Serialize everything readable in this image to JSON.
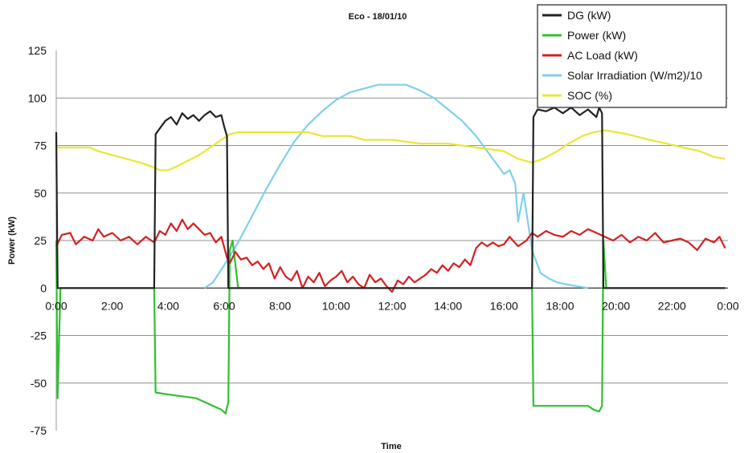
{
  "chart_data": {
    "type": "line",
    "title": "Eco - 18/01/10",
    "xlabel": "Time",
    "ylabel": "Power (kW)",
    "ylim": [
      -75,
      125
    ],
    "yticks": [
      125,
      100,
      75,
      50,
      25,
      0,
      -25,
      -50,
      -75
    ],
    "xlim_hours": [
      0,
      24
    ],
    "xticks": [
      "0:00",
      "2:00",
      "4:00",
      "6:00",
      "8:00",
      "10:00",
      "12:00",
      "14:00",
      "16:00",
      "18:00",
      "20:00",
      "22:00",
      "0:00"
    ],
    "grid": "horizontal",
    "legend_position": "top-right",
    "series": [
      {
        "name": "DG (kW)",
        "color": "#222222",
        "points": [
          [
            0,
            82
          ],
          [
            0.05,
            0
          ],
          [
            3.5,
            0
          ],
          [
            3.55,
            81
          ],
          [
            3.7,
            84
          ],
          [
            3.9,
            88
          ],
          [
            4.1,
            90
          ],
          [
            4.3,
            86
          ],
          [
            4.5,
            92
          ],
          [
            4.7,
            89
          ],
          [
            4.9,
            91
          ],
          [
            5.1,
            88
          ],
          [
            5.3,
            91
          ],
          [
            5.5,
            93
          ],
          [
            5.7,
            90
          ],
          [
            5.9,
            91
          ],
          [
            6.0,
            85
          ],
          [
            6.1,
            80
          ],
          [
            6.15,
            0
          ],
          [
            17.0,
            0
          ],
          [
            17.05,
            90
          ],
          [
            17.2,
            94
          ],
          [
            17.5,
            93
          ],
          [
            17.8,
            95
          ],
          [
            18.1,
            92
          ],
          [
            18.4,
            95
          ],
          [
            18.7,
            91
          ],
          [
            19.0,
            94
          ],
          [
            19.3,
            90
          ],
          [
            19.4,
            95
          ],
          [
            19.5,
            92
          ],
          [
            19.55,
            0
          ],
          [
            23.9,
            0
          ]
        ]
      },
      {
        "name": "Power (kW)",
        "color": "#2fc02f",
        "points": [
          [
            0,
            25
          ],
          [
            0.05,
            -58
          ],
          [
            0.15,
            0
          ],
          [
            3.5,
            0
          ],
          [
            3.55,
            -55
          ],
          [
            4.0,
            -56
          ],
          [
            4.5,
            -57
          ],
          [
            5.0,
            -58
          ],
          [
            5.3,
            -60
          ],
          [
            5.6,
            -62
          ],
          [
            5.9,
            -64
          ],
          [
            6.05,
            -66
          ],
          [
            6.15,
            -60
          ],
          [
            6.2,
            20
          ],
          [
            6.3,
            25
          ],
          [
            6.5,
            0
          ],
          [
            17.0,
            0
          ],
          [
            17.05,
            -62
          ],
          [
            17.5,
            -62
          ],
          [
            18.0,
            -62
          ],
          [
            18.5,
            -62
          ],
          [
            19.0,
            -62
          ],
          [
            19.2,
            -64
          ],
          [
            19.4,
            -65
          ],
          [
            19.5,
            -62
          ],
          [
            19.55,
            25
          ],
          [
            19.65,
            0
          ],
          [
            23.9,
            0
          ]
        ]
      },
      {
        "name": "AC Load (kW)",
        "color": "#d42020",
        "points": [
          [
            0,
            22
          ],
          [
            0.2,
            28
          ],
          [
            0.5,
            29
          ],
          [
            0.7,
            23
          ],
          [
            1.0,
            27
          ],
          [
            1.3,
            25
          ],
          [
            1.5,
            31
          ],
          [
            1.7,
            27
          ],
          [
            2.0,
            29
          ],
          [
            2.3,
            25
          ],
          [
            2.6,
            27
          ],
          [
            2.9,
            23
          ],
          [
            3.2,
            27
          ],
          [
            3.5,
            24
          ],
          [
            3.7,
            30
          ],
          [
            3.9,
            28
          ],
          [
            4.1,
            34
          ],
          [
            4.3,
            30
          ],
          [
            4.5,
            36
          ],
          [
            4.7,
            31
          ],
          [
            4.9,
            34
          ],
          [
            5.1,
            31
          ],
          [
            5.3,
            28
          ],
          [
            5.5,
            29
          ],
          [
            5.7,
            24
          ],
          [
            5.9,
            27
          ],
          [
            6.1,
            16
          ],
          [
            6.2,
            13
          ],
          [
            6.4,
            19
          ],
          [
            6.6,
            15
          ],
          [
            6.8,
            16
          ],
          [
            7.0,
            12
          ],
          [
            7.2,
            14
          ],
          [
            7.4,
            10
          ],
          [
            7.6,
            13
          ],
          [
            7.8,
            5
          ],
          [
            8.0,
            11
          ],
          [
            8.2,
            6
          ],
          [
            8.4,
            4
          ],
          [
            8.6,
            9
          ],
          [
            8.8,
            0
          ],
          [
            9.0,
            6
          ],
          [
            9.2,
            3
          ],
          [
            9.4,
            8
          ],
          [
            9.6,
            1
          ],
          [
            9.8,
            4
          ],
          [
            10.0,
            6
          ],
          [
            10.2,
            9
          ],
          [
            10.4,
            3
          ],
          [
            10.6,
            6
          ],
          [
            10.8,
            2
          ],
          [
            11.0,
            0
          ],
          [
            11.2,
            7
          ],
          [
            11.4,
            3
          ],
          [
            11.6,
            5
          ],
          [
            11.8,
            1
          ],
          [
            12.0,
            -2
          ],
          [
            12.2,
            4
          ],
          [
            12.4,
            2
          ],
          [
            12.6,
            6
          ],
          [
            12.8,
            3
          ],
          [
            13.0,
            5
          ],
          [
            13.2,
            7
          ],
          [
            13.4,
            10
          ],
          [
            13.6,
            8
          ],
          [
            13.8,
            12
          ],
          [
            14.0,
            9
          ],
          [
            14.2,
            13
          ],
          [
            14.4,
            11
          ],
          [
            14.6,
            15
          ],
          [
            14.8,
            12
          ],
          [
            15.0,
            21
          ],
          [
            15.2,
            24
          ],
          [
            15.4,
            22
          ],
          [
            15.6,
            24
          ],
          [
            15.8,
            22
          ],
          [
            16.0,
            23
          ],
          [
            16.2,
            27
          ],
          [
            16.5,
            22
          ],
          [
            16.8,
            25
          ],
          [
            17.0,
            29
          ],
          [
            17.2,
            27
          ],
          [
            17.5,
            30
          ],
          [
            17.8,
            28
          ],
          [
            18.1,
            27
          ],
          [
            18.4,
            30
          ],
          [
            18.7,
            28
          ],
          [
            19.0,
            31
          ],
          [
            19.3,
            29
          ],
          [
            19.6,
            27
          ],
          [
            19.9,
            25
          ],
          [
            20.2,
            28
          ],
          [
            20.5,
            24
          ],
          [
            20.8,
            27
          ],
          [
            21.1,
            25
          ],
          [
            21.4,
            29
          ],
          [
            21.7,
            24
          ],
          [
            22.0,
            25
          ],
          [
            22.3,
            26
          ],
          [
            22.6,
            24
          ],
          [
            22.9,
            20
          ],
          [
            23.2,
            26
          ],
          [
            23.5,
            24
          ],
          [
            23.7,
            27
          ],
          [
            23.9,
            21
          ]
        ]
      },
      {
        "name": "Solar Irradiation (W/m2)/10",
        "color": "#7fd0ea",
        "points": [
          [
            5.3,
            0
          ],
          [
            5.6,
            3
          ],
          [
            6.0,
            12
          ],
          [
            6.5,
            24
          ],
          [
            7.0,
            38
          ],
          [
            7.5,
            52
          ],
          [
            8.0,
            65
          ],
          [
            8.5,
            77
          ],
          [
            9.0,
            86
          ],
          [
            9.5,
            93
          ],
          [
            10.0,
            99
          ],
          [
            10.5,
            103
          ],
          [
            11.0,
            105
          ],
          [
            11.5,
            107
          ],
          [
            12.0,
            107
          ],
          [
            12.5,
            107
          ],
          [
            13.0,
            104
          ],
          [
            13.5,
            100
          ],
          [
            14.0,
            94
          ],
          [
            14.5,
            88
          ],
          [
            15.0,
            80
          ],
          [
            15.5,
            70
          ],
          [
            16.0,
            60
          ],
          [
            16.2,
            62
          ],
          [
            16.4,
            55
          ],
          [
            16.5,
            35
          ],
          [
            16.7,
            50
          ],
          [
            17.0,
            20
          ],
          [
            17.3,
            8
          ],
          [
            17.6,
            5
          ],
          [
            17.9,
            3
          ],
          [
            18.2,
            2
          ],
          [
            18.6,
            1
          ],
          [
            19.0,
            0
          ]
        ]
      },
      {
        "name": "SOC (%)",
        "color": "#e8e835",
        "points": [
          [
            0,
            74
          ],
          [
            1.2,
            74
          ],
          [
            1.5,
            72
          ],
          [
            2.0,
            70
          ],
          [
            2.5,
            68
          ],
          [
            3.0,
            66
          ],
          [
            3.4,
            64
          ],
          [
            3.7,
            62
          ],
          [
            4.0,
            62
          ],
          [
            4.3,
            64
          ],
          [
            4.7,
            67
          ],
          [
            5.1,
            70
          ],
          [
            5.5,
            74
          ],
          [
            5.9,
            78
          ],
          [
            6.2,
            81
          ],
          [
            6.5,
            82
          ],
          [
            8.0,
            82
          ],
          [
            9.0,
            82
          ],
          [
            9.5,
            80
          ],
          [
            10.5,
            80
          ],
          [
            11.0,
            78
          ],
          [
            12.0,
            78
          ],
          [
            13.0,
            76
          ],
          [
            14.0,
            76
          ],
          [
            15.0,
            74
          ],
          [
            16.0,
            72
          ],
          [
            16.5,
            68
          ],
          [
            17.0,
            66
          ],
          [
            17.4,
            68
          ],
          [
            17.9,
            72
          ],
          [
            18.3,
            76
          ],
          [
            18.8,
            80
          ],
          [
            19.2,
            82
          ],
          [
            19.6,
            83
          ],
          [
            20.4,
            81
          ],
          [
            21.2,
            78
          ],
          [
            21.8,
            76
          ],
          [
            22.4,
            74
          ],
          [
            23.0,
            72
          ],
          [
            23.5,
            69
          ],
          [
            23.9,
            68
          ]
        ]
      }
    ]
  }
}
